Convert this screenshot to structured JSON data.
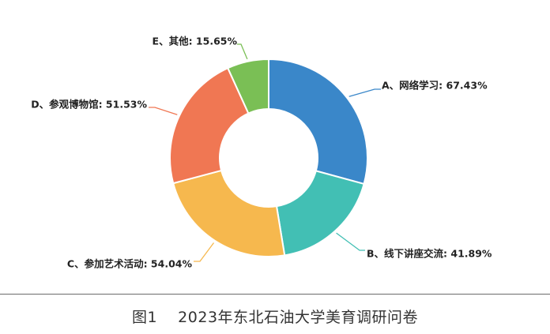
{
  "chart_data": {
    "type": "pie",
    "donut": true,
    "slices": [
      {
        "label": "A、网络学习: 67.43%",
        "value": 67.43,
        "color": "#3A87C9"
      },
      {
        "label": "B、线下讲座交流: 41.89%",
        "value": 41.89,
        "color": "#42BFB4"
      },
      {
        "label": "C、参加艺术活动: 54.04%",
        "value": 54.04,
        "color": "#F6B84E"
      },
      {
        "label": "D、参观博物馆: 51.53%",
        "value": 51.53,
        "color": "#F07753"
      },
      {
        "label": "E、其他: 15.65%",
        "value": 15.65,
        "color": "#7ABF55"
      }
    ]
  },
  "caption": "图1    2023年东北石油大学美育调研问卷"
}
